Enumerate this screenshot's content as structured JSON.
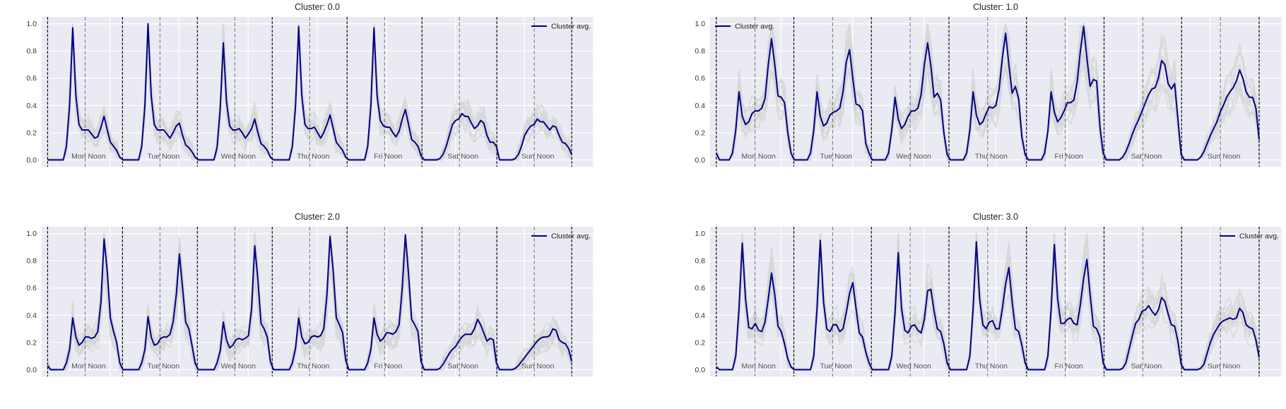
{
  "chart_data": [
    {
      "type": "line",
      "title": "Cluster: 0.0",
      "ylim": [
        -0.05,
        1.05
      ],
      "yticks": [
        "0.0",
        "0.2",
        "0.4",
        "0.6",
        "0.8",
        "1.0"
      ],
      "day_labels": [
        "Mon Noon",
        "Tue Noon",
        "Wed Noon",
        "Thu Noon",
        "Fri Noon",
        "Sat Noon",
        "Sun Noon"
      ],
      "legend": {
        "label": "Cluster avg.",
        "loc": "top-right"
      },
      "colors": {
        "avg": "#00008b",
        "members": "#d6d6d6"
      },
      "series": [
        {
          "name": "Cluster avg.",
          "values": [
            0,
            0,
            0,
            0,
            0,
            0,
            0.1,
            0.4,
            0.97,
            0.47,
            0.26,
            0.22,
            0.22,
            0.22,
            0.19,
            0.16,
            0.17,
            0.24,
            0.32,
            0.22,
            0.13,
            0.1,
            0.07,
            0.02,
            0,
            0,
            0,
            0,
            0,
            0,
            0.1,
            0.4,
            1.0,
            0.47,
            0.26,
            0.22,
            0.22,
            0.22,
            0.19,
            0.16,
            0.2,
            0.25,
            0.27,
            0.18,
            0.11,
            0.09,
            0.06,
            0.02,
            0,
            0,
            0,
            0,
            0,
            0,
            0.09,
            0.38,
            0.86,
            0.43,
            0.25,
            0.22,
            0.22,
            0.23,
            0.2,
            0.16,
            0.19,
            0.23,
            0.3,
            0.2,
            0.12,
            0.1,
            0.07,
            0.02,
            0,
            0,
            0,
            0,
            0,
            0,
            0.1,
            0.4,
            0.98,
            0.47,
            0.26,
            0.23,
            0.23,
            0.24,
            0.2,
            0.16,
            0.2,
            0.26,
            0.33,
            0.23,
            0.13,
            0.1,
            0.07,
            0.02,
            0,
            0,
            0,
            0,
            0,
            0,
            0.1,
            0.4,
            0.97,
            0.47,
            0.29,
            0.25,
            0.24,
            0.24,
            0.2,
            0.17,
            0.21,
            0.3,
            0.37,
            0.26,
            0.15,
            0.13,
            0.1,
            0.03,
            0,
            0,
            0,
            0,
            0,
            0.01,
            0.04,
            0.1,
            0.18,
            0.26,
            0.29,
            0.3,
            0.34,
            0.32,
            0.32,
            0.27,
            0.23,
            0.25,
            0.29,
            0.27,
            0.18,
            0.13,
            0.13,
            0.1,
            0,
            0,
            0,
            0,
            0,
            0.01,
            0.04,
            0.1,
            0.18,
            0.22,
            0.25,
            0.26,
            0.3,
            0.28,
            0.28,
            0.25,
            0.22,
            0.25,
            0.24,
            0.18,
            0.13,
            0.12,
            0.09,
            0.04
          ]
        }
      ]
    },
    {
      "type": "line",
      "title": "Cluster: 1.0",
      "ylim": [
        -0.05,
        1.05
      ],
      "yticks": [
        "0.0",
        "0.2",
        "0.4",
        "0.6",
        "0.8",
        "1.0"
      ],
      "day_labels": [
        "Mon Noon",
        "Tue Noon",
        "Wed Noon",
        "Thu Noon",
        "Fri Noon",
        "Sat Noon",
        "Sun Noon"
      ],
      "legend": {
        "label": "Cluster avg.",
        "loc": "top-left"
      },
      "colors": {
        "avg": "#00008b",
        "members": "#d6d6d6"
      },
      "series": [
        {
          "name": "Cluster avg.",
          "values": [
            0.05,
            0,
            0,
            0,
            0,
            0.05,
            0.22,
            0.5,
            0.32,
            0.26,
            0.28,
            0.34,
            0.36,
            0.36,
            0.38,
            0.45,
            0.7,
            0.89,
            0.7,
            0.47,
            0.46,
            0.42,
            0.2,
            0.05,
            0,
            0,
            0,
            0,
            0,
            0.05,
            0.22,
            0.5,
            0.32,
            0.25,
            0.27,
            0.33,
            0.35,
            0.36,
            0.38,
            0.5,
            0.72,
            0.81,
            0.6,
            0.41,
            0.4,
            0.36,
            0.12,
            0.05,
            0,
            0,
            0,
            0,
            0,
            0.05,
            0.22,
            0.46,
            0.3,
            0.23,
            0.26,
            0.32,
            0.36,
            0.36,
            0.38,
            0.48,
            0.7,
            0.86,
            0.69,
            0.46,
            0.49,
            0.44,
            0.2,
            0.04,
            0,
            0,
            0,
            0,
            0,
            0.05,
            0.22,
            0.5,
            0.33,
            0.26,
            0.28,
            0.34,
            0.39,
            0.38,
            0.4,
            0.52,
            0.75,
            0.93,
            0.7,
            0.49,
            0.54,
            0.45,
            0.17,
            0.04,
            0,
            0,
            0,
            0,
            0,
            0.05,
            0.21,
            0.5,
            0.35,
            0.28,
            0.31,
            0.36,
            0.42,
            0.42,
            0.44,
            0.57,
            0.8,
            0.98,
            0.75,
            0.54,
            0.59,
            0.58,
            0.25,
            0.05,
            0,
            0,
            0,
            0,
            0,
            0.02,
            0.06,
            0.12,
            0.19,
            0.25,
            0.3,
            0.36,
            0.42,
            0.48,
            0.52,
            0.53,
            0.6,
            0.73,
            0.7,
            0.56,
            0.52,
            0.56,
            0.3,
            0.04,
            0,
            0,
            0,
            0,
            0,
            0.02,
            0.06,
            0.12,
            0.18,
            0.23,
            0.28,
            0.35,
            0.4,
            0.46,
            0.5,
            0.53,
            0.58,
            0.66,
            0.6,
            0.5,
            0.46,
            0.46,
            0.38,
            0.15
          ]
        }
      ]
    },
    {
      "type": "line",
      "title": "Cluster: 2.0",
      "ylim": [
        -0.05,
        1.05
      ],
      "yticks": [
        "0.0",
        "0.2",
        "0.4",
        "0.6",
        "0.8",
        "1.0"
      ],
      "day_labels": [
        "Mon Noon",
        "Tue Noon",
        "Wed Noon",
        "Thu Noon",
        "Fri Noon",
        "Sat Noon",
        "Sun Noon"
      ],
      "legend": {
        "label": "Cluster avg.",
        "loc": "top-right"
      },
      "colors": {
        "avg": "#00008b",
        "members": "#d6d6d6"
      },
      "series": [
        {
          "name": "Cluster avg.",
          "values": [
            0.03,
            0,
            0,
            0,
            0,
            0,
            0.05,
            0.15,
            0.38,
            0.24,
            0.18,
            0.2,
            0.24,
            0.24,
            0.23,
            0.24,
            0.28,
            0.5,
            0.96,
            0.72,
            0.38,
            0.28,
            0.2,
            0.05,
            0,
            0,
            0,
            0,
            0,
            0,
            0.05,
            0.15,
            0.39,
            0.24,
            0.18,
            0.19,
            0.23,
            0.24,
            0.24,
            0.26,
            0.35,
            0.55,
            0.85,
            0.6,
            0.35,
            0.3,
            0.18,
            0.05,
            0,
            0,
            0,
            0,
            0,
            0,
            0.05,
            0.14,
            0.35,
            0.22,
            0.16,
            0.18,
            0.22,
            0.23,
            0.22,
            0.23,
            0.25,
            0.45,
            0.91,
            0.66,
            0.34,
            0.3,
            0.24,
            0.06,
            0,
            0,
            0,
            0,
            0,
            0,
            0.05,
            0.16,
            0.38,
            0.24,
            0.19,
            0.2,
            0.24,
            0.25,
            0.24,
            0.25,
            0.3,
            0.55,
            0.98,
            0.72,
            0.38,
            0.33,
            0.27,
            0.07,
            0,
            0,
            0,
            0,
            0,
            0,
            0.05,
            0.15,
            0.38,
            0.26,
            0.21,
            0.23,
            0.27,
            0.27,
            0.26,
            0.28,
            0.33,
            0.6,
            0.99,
            0.7,
            0.37,
            0.33,
            0.28,
            0.06,
            0,
            0,
            0,
            0,
            0,
            0.01,
            0.04,
            0.08,
            0.12,
            0.15,
            0.17,
            0.21,
            0.24,
            0.26,
            0.26,
            0.26,
            0.3,
            0.37,
            0.33,
            0.27,
            0.21,
            0.23,
            0.22,
            0.05,
            0,
            0,
            0,
            0,
            0,
            0.01,
            0.03,
            0.06,
            0.09,
            0.12,
            0.15,
            0.18,
            0.21,
            0.23,
            0.24,
            0.24,
            0.25,
            0.3,
            0.29,
            0.22,
            0.2,
            0.19,
            0.15,
            0.06
          ]
        }
      ]
    },
    {
      "type": "line",
      "title": "Cluster: 3.0",
      "ylim": [
        -0.05,
        1.05
      ],
      "yticks": [
        "0.0",
        "0.2",
        "0.4",
        "0.6",
        "0.8",
        "1.0"
      ],
      "day_labels": [
        "Mon Noon",
        "Tue Noon",
        "Wed Noon",
        "Thu Noon",
        "Fri Noon",
        "Sat Noon",
        "Sun Noon"
      ],
      "legend": {
        "label": "Cluster avg.",
        "loc": "top-right"
      },
      "colors": {
        "avg": "#00008b",
        "members": "#d6d6d6"
      },
      "series": [
        {
          "name": "Cluster avg.",
          "values": [
            0.02,
            0,
            0,
            0,
            0,
            0,
            0.1,
            0.45,
            0.93,
            0.52,
            0.31,
            0.3,
            0.34,
            0.29,
            0.28,
            0.35,
            0.52,
            0.71,
            0.55,
            0.32,
            0.28,
            0.19,
            0.08,
            0.02,
            0,
            0,
            0,
            0,
            0,
            0,
            0.1,
            0.45,
            0.95,
            0.5,
            0.3,
            0.28,
            0.33,
            0.33,
            0.28,
            0.3,
            0.42,
            0.56,
            0.64,
            0.45,
            0.27,
            0.24,
            0.13,
            0.05,
            0,
            0,
            0,
            0,
            0,
            0,
            0.1,
            0.42,
            0.86,
            0.45,
            0.29,
            0.27,
            0.32,
            0.33,
            0.29,
            0.27,
            0.37,
            0.58,
            0.59,
            0.43,
            0.3,
            0.28,
            0.19,
            0.05,
            0,
            0,
            0,
            0,
            0,
            0,
            0.1,
            0.45,
            0.94,
            0.52,
            0.33,
            0.3,
            0.35,
            0.36,
            0.3,
            0.3,
            0.45,
            0.63,
            0.75,
            0.5,
            0.3,
            0.28,
            0.18,
            0.05,
            0,
            0,
            0,
            0,
            0,
            0,
            0.1,
            0.44,
            0.92,
            0.52,
            0.34,
            0.34,
            0.37,
            0.38,
            0.34,
            0.33,
            0.48,
            0.67,
            0.81,
            0.55,
            0.32,
            0.3,
            0.24,
            0.05,
            0,
            0,
            0,
            0,
            0,
            0.01,
            0.05,
            0.15,
            0.25,
            0.34,
            0.37,
            0.43,
            0.44,
            0.47,
            0.43,
            0.4,
            0.44,
            0.53,
            0.5,
            0.41,
            0.33,
            0.32,
            0.21,
            0.04,
            0,
            0,
            0,
            0,
            0,
            0.01,
            0.04,
            0.12,
            0.2,
            0.26,
            0.3,
            0.34,
            0.36,
            0.37,
            0.38,
            0.37,
            0.38,
            0.45,
            0.42,
            0.33,
            0.31,
            0.3,
            0.22,
            0.09
          ]
        }
      ]
    }
  ]
}
